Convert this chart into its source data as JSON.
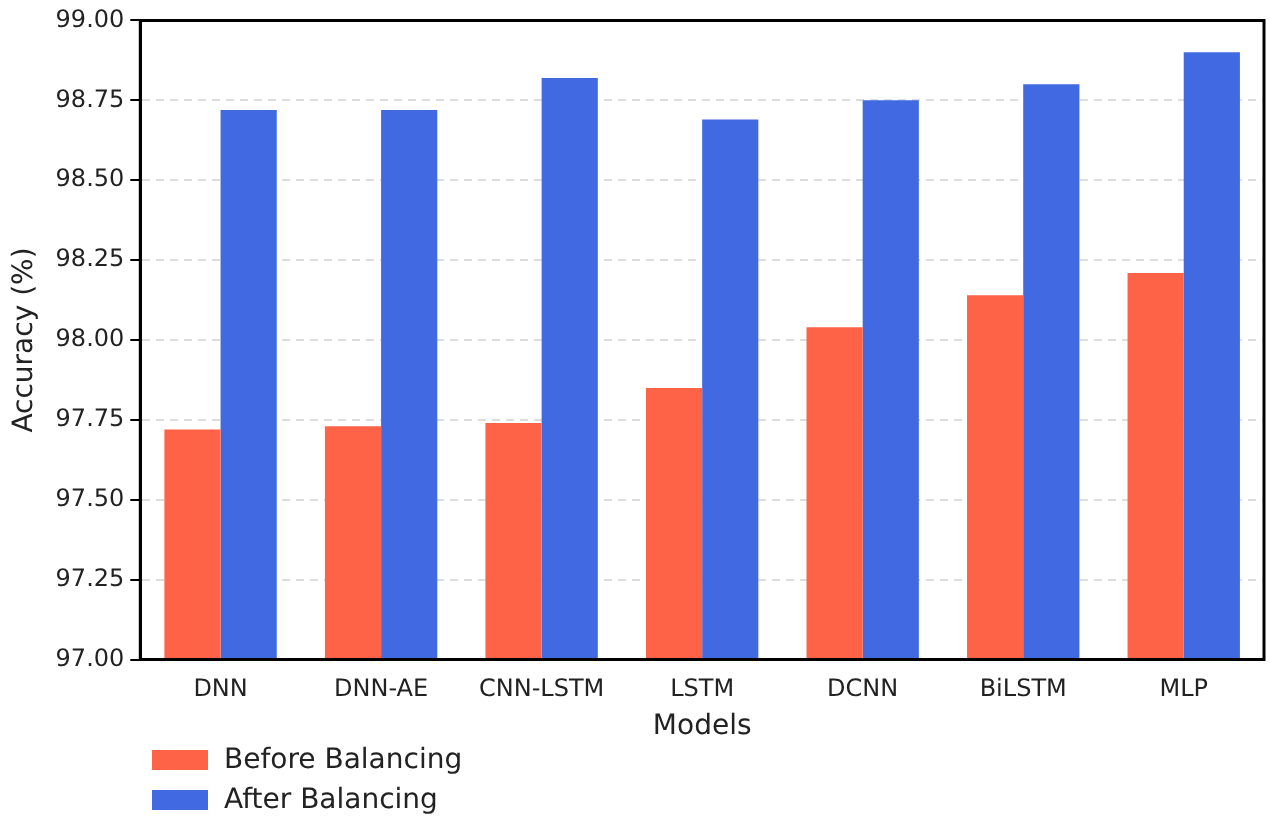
{
  "chart_data": {
    "type": "bar",
    "xlabel": "Models",
    "ylabel": "Accuracy (%)",
    "categories": [
      "DNN",
      "DNN-AE",
      "CNN-LSTM",
      "LSTM",
      "DCNN",
      "BiLSTM",
      "MLP"
    ],
    "series": [
      {
        "name": "Before Balancing",
        "color": "#ff6347",
        "values": [
          97.72,
          97.73,
          97.74,
          97.85,
          98.04,
          98.14,
          98.21
        ]
      },
      {
        "name": "After Balancing",
        "color": "#4169e1",
        "values": [
          98.72,
          98.72,
          98.82,
          98.69,
          98.75,
          98.8,
          98.9
        ]
      }
    ],
    "ylim": [
      97,
      99
    ],
    "yticks": [
      {
        "value": 97,
        "label": "97.00"
      },
      {
        "value": 97.25,
        "label": "97.25"
      },
      {
        "value": 97.5,
        "label": "97.50"
      },
      {
        "value": 97.75,
        "label": "97.75"
      },
      {
        "value": 98,
        "label": "98.00"
      },
      {
        "value": 98.25,
        "label": "98.25"
      },
      {
        "value": 98.5,
        "label": "98.50"
      },
      {
        "value": 98.75,
        "label": "98.75"
      },
      {
        "value": 99,
        "label": "99.00"
      }
    ],
    "grid": "y",
    "legend": "bottom left"
  }
}
